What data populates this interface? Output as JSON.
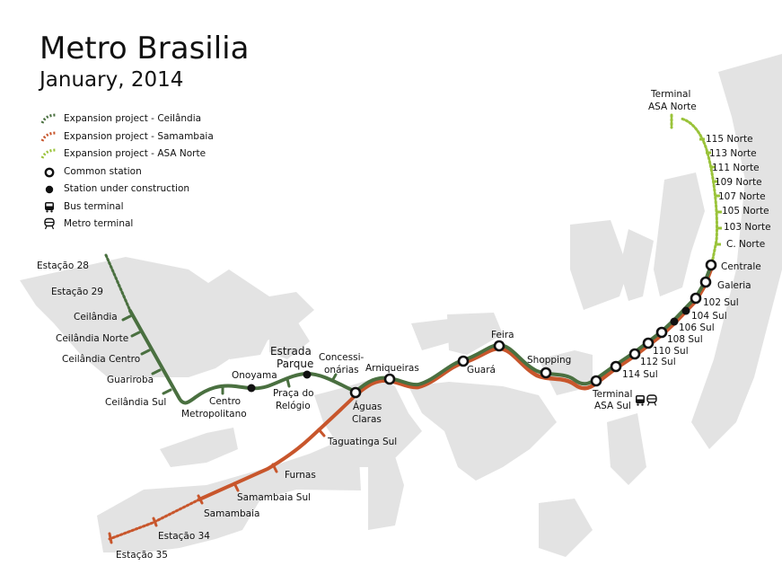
{
  "header": {
    "title": "Metro Brasilia",
    "subtitle": "January, 2014"
  },
  "colors": {
    "ceilandia": "#4a7040",
    "samambaia": "#c8562c",
    "asa_norte": "#9ac33a",
    "district": "#e0e0e0"
  },
  "legend": [
    {
      "label": "Expansion project - Ceilândia",
      "symbol": "dotted-line-ceilandia"
    },
    {
      "label": "Expansion project - Samambaia",
      "symbol": "dotted-line-samambaia"
    },
    {
      "label": "Expansion project - ASA Norte",
      "symbol": "dotted-line-asa-norte"
    },
    {
      "label": "Common station",
      "symbol": "ring-icon"
    },
    {
      "label": "Station under construction",
      "symbol": "dot-icon"
    },
    {
      "label": "Bus terminal",
      "symbol": "bus-icon"
    },
    {
      "label": "Metro terminal",
      "symbol": "metro-icon"
    }
  ],
  "stations": {
    "common": [
      "Águas Claras",
      "Arniqueiras",
      "Guará",
      "Feira",
      "Shopping",
      "Terminal ASA Sul",
      "114 Sul",
      "112 Sul",
      "110 Sul",
      "106 Sul",
      "102 Sul",
      "Galeria",
      "Centrale"
    ],
    "under_construction": [
      "Onoyama",
      "Estrada Parque",
      "108 Sul",
      "104 Sul"
    ],
    "ceilandia_branch": [
      "Estação 28",
      "Estação 29",
      "Ceilândia",
      "Ceilândia Norte",
      "Ceilândia Centro",
      "Guariroba",
      "Ceilândia Sul",
      "Centro Metropolitano",
      "Praça do Relógio",
      "Concessionárias"
    ],
    "samambaia_branch": [
      "Taguatinga Sul",
      "Furnas",
      "Samambaia Sul",
      "Samambaia",
      "Estação 34",
      "Estação 35"
    ],
    "asa_norte_branch": [
      "C. Norte",
      "103 Norte",
      "105 Norte",
      "107 Norte",
      "109 Norte",
      "111 Norte",
      "113 Norte",
      "115 Norte",
      "Terminal ASA Norte"
    ]
  },
  "labels": {
    "estacao28": "Estação 28",
    "estacao29": "Estação 29",
    "ceilandia": "Ceilândia",
    "ceilandia_norte": "Ceilândia Norte",
    "ceilandia_centro": "Ceilândia Centro",
    "guariroba": "Guariroba",
    "ceilandia_sul": "Ceilândia Sul",
    "centro_l1": "Centro",
    "centro_l2": "Metropolitano",
    "onoyama": "Onoyama",
    "estrada_l1": "Estrada",
    "estrada_l2": "Parque",
    "praca_l1": "Praça do",
    "praca_l2": "Relógio",
    "concess_l1": "Concessi-",
    "concess_l2": "onárias",
    "aguas_l1": "Águas",
    "aguas_l2": "Claras",
    "arniqueiras": "Arniqueiras",
    "guara": "Guará",
    "feira": "Feira",
    "shopping": "Shopping",
    "terminal_sul_l1": "Terminal",
    "terminal_sul_l2": "ASA Sul",
    "s114": "114 Sul",
    "s112": "112 Sul",
    "s110": "110 Sul",
    "s108": "108 Sul",
    "s106": "106 Sul",
    "s104": "104 Sul",
    "s102": "102 Sul",
    "galeria": "Galeria",
    "centrale": "Centrale",
    "cnorte": "C. Norte",
    "n103": "103 Norte",
    "n105": "105 Norte",
    "n107": "107 Norte",
    "n109": "109 Norte",
    "n111": "111 Norte",
    "n113": "113 Norte",
    "n115": "115 Norte",
    "terminal_norte_l1": "Terminal",
    "terminal_norte_l2": "ASA Norte",
    "taguatinga_sul": "Taguatinga Sul",
    "furnas": "Furnas",
    "samambaia_sul": "Samambaia Sul",
    "samambaia": "Samambaia",
    "estacao34": "Estação 34",
    "estacao35": "Estação 35"
  }
}
